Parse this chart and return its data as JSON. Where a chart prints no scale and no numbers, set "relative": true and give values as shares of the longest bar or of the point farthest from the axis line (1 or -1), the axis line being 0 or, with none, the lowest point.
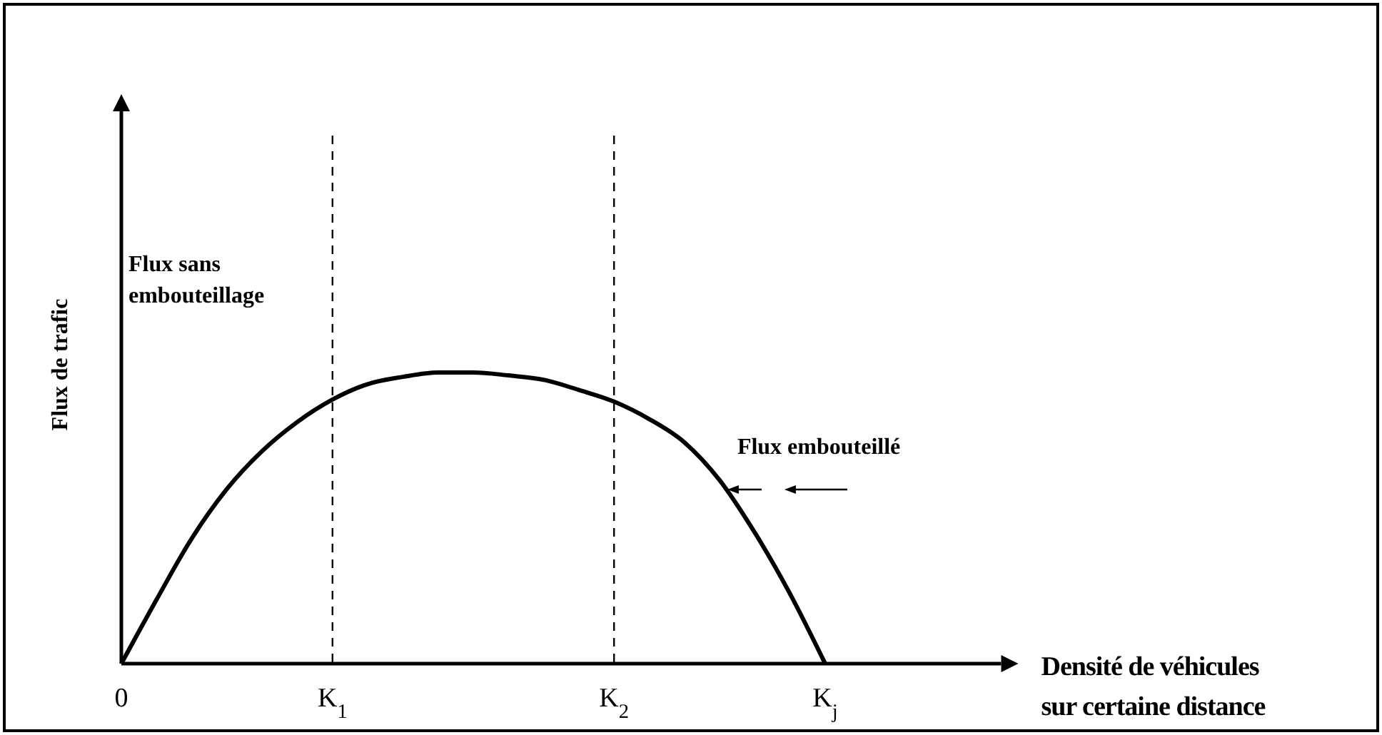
{
  "chart_data": {
    "type": "line",
    "relative": true,
    "xlabel": "Densité de véhicules\nsur certaine distance",
    "ylabel": "Flux de trafic",
    "categories": [
      "0",
      null,
      null,
      null,
      null,
      null,
      "K$_{1}$",
      null,
      null,
      null,
      null,
      null,
      null,
      null,
      "K$_{2}$",
      null,
      null,
      null,
      null,
      null,
      "K$_{j}$",
      null,
      null,
      null,
      null,
      null
    ],
    "series": [
      {
        "color": "#000000",
        "values": [
          0,
          0.22,
          0.43,
          0.6,
          0.73,
          0.83,
          0.907,
          0.96,
          0.985,
          1,
          1,
          0.99,
          0.975,
          0.94,
          0.9,
          0.84,
          0.76,
          0.63,
          0.45,
          0.24,
          0,
          null,
          null,
          null,
          null,
          null
        ]
      }
    ],
    "ref_lines": [
      {
        "axis": "x",
        "value": "K$_{1}$",
        "line_style": "dashed",
        "color": "#000000"
      },
      {
        "axis": "x",
        "value": "K$_{2}$",
        "line_style": "dashed",
        "color": "#000000"
      }
    ],
    "annotations": [
      "Flux sans\nembouteillage",
      "Flux embouteillé"
    ],
    "marker": "none",
    "line_style": "solid",
    "grid": false
  }
}
